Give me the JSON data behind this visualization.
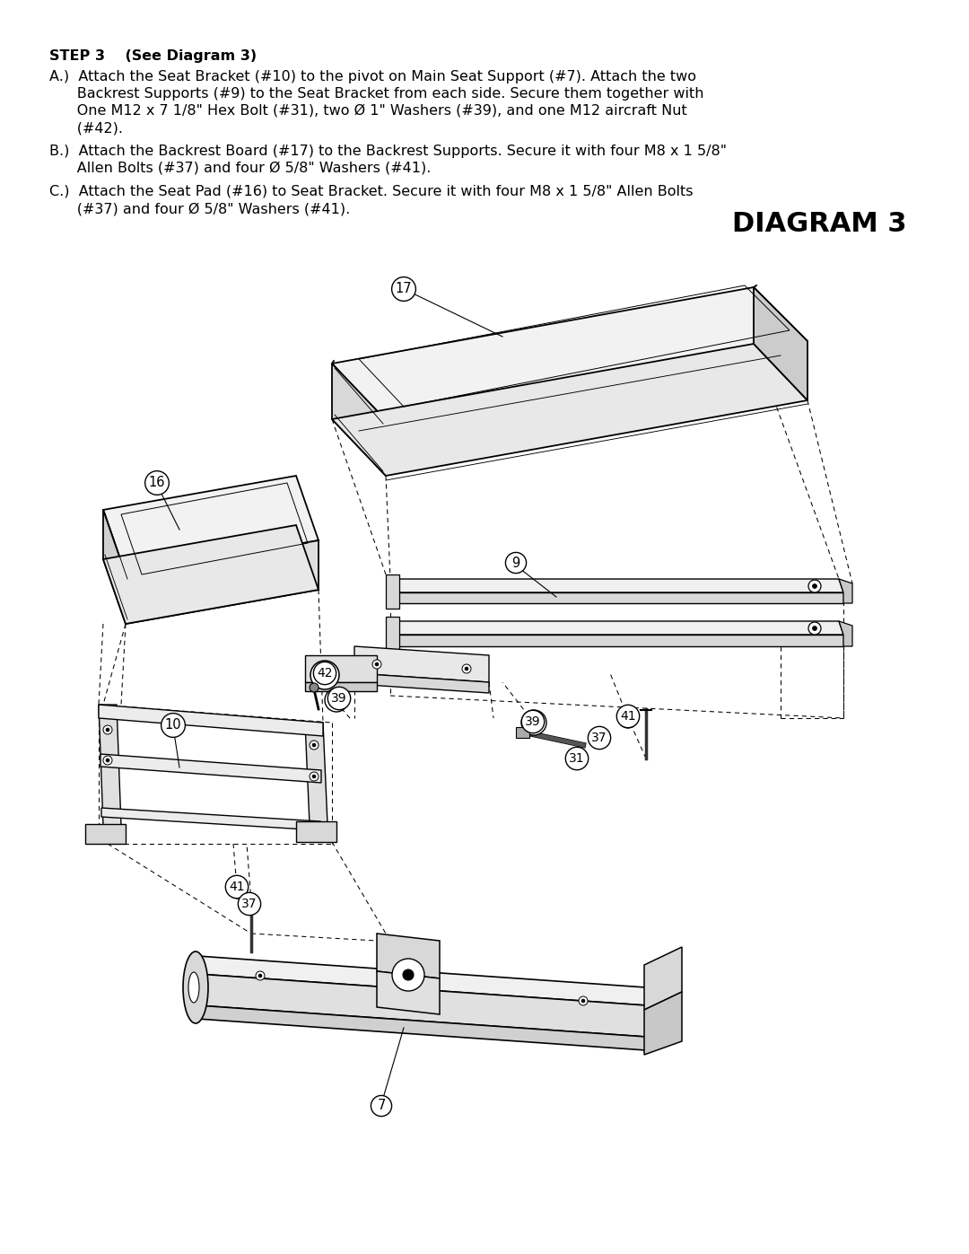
{
  "background_color": "#ffffff",
  "title": "DIAGRAM 3",
  "step_header": "STEP 3    (See Diagram 3)",
  "line_A1": "A.)  Attach the Seat Bracket (#10) to the pivot on Main Seat Support (#7). Attach the two",
  "line_A2": "      Backrest Supports (#9) to the Seat Bracket from each side. Secure them together with",
  "line_A3": "      One M12 x 7 1/8\" Hex Bolt (#31), two Ø 1\" Washers (#39), and one M12 aircraft Nut",
  "line_A4": "      (#42).",
  "line_B1": "B.)  Attach the Backrest Board (#17) to the Backrest Supports. Secure it with four M8 x 1 5/8\"",
  "line_B2": "      Allen Bolts (#37) and four Ø 5/8\" Washers (#41).",
  "line_C1": "C.)  Attach the Seat Pad (#16) to Seat Bracket. Secure it with four M8 x 1 5/8\" Allen Bolts",
  "line_C2": "      (#37) and four Ø 5/8\" Washers (#41)."
}
